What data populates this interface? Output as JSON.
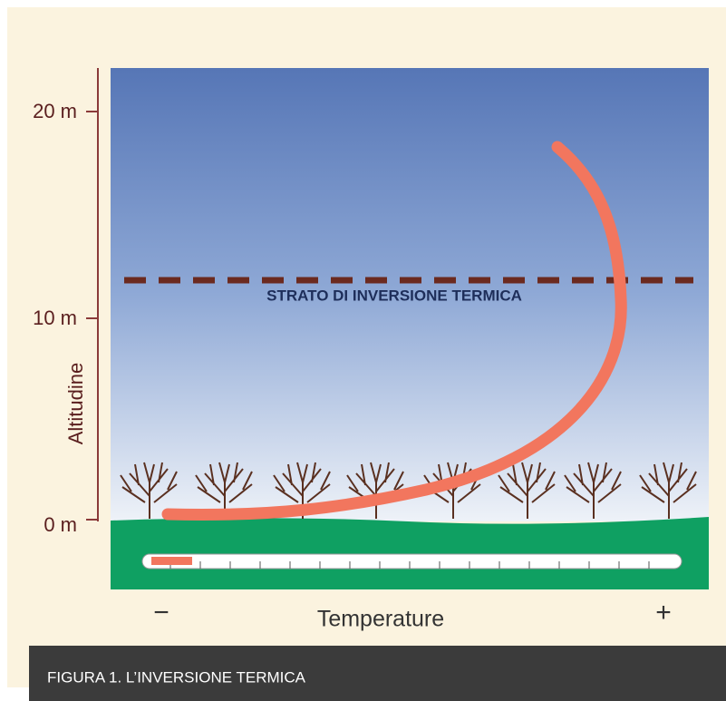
{
  "y_axis": {
    "title": "Altitudine",
    "ticks": [
      "20 m",
      "10 m",
      "0 m"
    ]
  },
  "layer_label": "STRATO DI INVERSIONE TERMICA",
  "x_axis": {
    "min_label": "−",
    "title": "Temperature",
    "max_label": "+"
  },
  "caption": "FIGURA 1. L’INVERSIONE TERMICA"
}
